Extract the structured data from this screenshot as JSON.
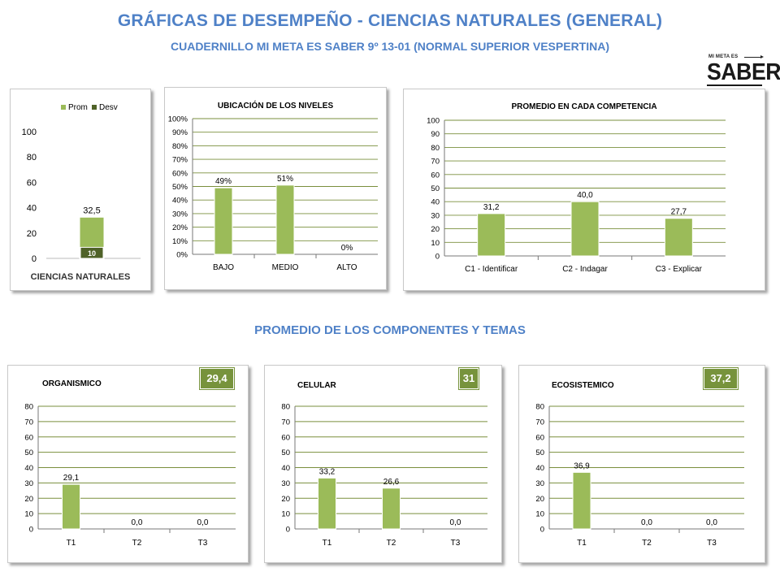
{
  "header": {
    "title": "GRÁFICAS DE DESEMPEÑO - CIENCIAS NATURALES (GENERAL)",
    "subtitle": "CUADERNILLO MI META ES SABER 9º 13-01 (NORMAL SUPERIOR VESPERTINA)",
    "section_title": "PROMEDIO DE LOS COMPONENTES Y TEMAS"
  },
  "logo": {
    "top_text": "MI META ES",
    "main_text": "SABER"
  },
  "colors": {
    "bar": "#9bbb59",
    "bar_dark": "#4f6228",
    "badge": "#77933c",
    "title": "#4f81c7"
  },
  "chart_data": [
    {
      "id": "general",
      "type": "bar",
      "categories": [
        "CIENCIAS NATURALES"
      ],
      "series": [
        {
          "name": "Prom",
          "values": [
            32.5
          ],
          "labels": [
            "32,5"
          ]
        },
        {
          "name": "Desv",
          "values": [
            10
          ],
          "labels": [
            "10"
          ]
        }
      ],
      "legend_position": "top",
      "ylim": [
        0,
        100
      ],
      "yticks": [
        0,
        20,
        40,
        60,
        80,
        100
      ],
      "ytick_labels": [
        "0",
        "20",
        "40",
        "60",
        "80",
        "100"
      ],
      "grid": false
    },
    {
      "id": "niveles",
      "type": "bar",
      "title": "UBICACIÓN DE LOS NIVELES",
      "categories": [
        "BAJO",
        "MEDIO",
        "ALTO"
      ],
      "values": [
        49,
        51,
        0
      ],
      "labels": [
        "49%",
        "51%",
        "0%"
      ],
      "ylim": [
        0,
        100
      ],
      "yticks": [
        0,
        10,
        20,
        30,
        40,
        50,
        60,
        70,
        80,
        90,
        100
      ],
      "ytick_labels": [
        "0%",
        "10%",
        "20%",
        "30%",
        "40%",
        "50%",
        "60%",
        "70%",
        "80%",
        "90%",
        "100%"
      ],
      "grid": true
    },
    {
      "id": "competencia",
      "type": "bar",
      "title": "PROMEDIO EN CADA COMPETENCIA",
      "categories": [
        "C1 - Identificar",
        "C2 - Indagar",
        "C3 - Explicar"
      ],
      "values": [
        31.2,
        40.0,
        27.7
      ],
      "labels": [
        "31,2",
        "40,0",
        "27,7"
      ],
      "ylim": [
        0,
        100
      ],
      "yticks": [
        0,
        10,
        20,
        30,
        40,
        50,
        60,
        70,
        80,
        90,
        100
      ],
      "ytick_labels": [
        "0",
        "10",
        "20",
        "30",
        "40",
        "50",
        "60",
        "70",
        "80",
        "90",
        "100"
      ],
      "grid": true
    },
    {
      "id": "organismico",
      "type": "bar",
      "title": "ORGANISMICO",
      "badge": "29,4",
      "categories": [
        "T1",
        "T2",
        "T3"
      ],
      "values": [
        29.1,
        0.0,
        0.0
      ],
      "labels": [
        "29,1",
        "0,0",
        "0,0"
      ],
      "ylim": [
        0,
        80
      ],
      "yticks": [
        0,
        10,
        20,
        30,
        40,
        50,
        60,
        70,
        80
      ],
      "ytick_labels": [
        "0",
        "10",
        "20",
        "30",
        "40",
        "50",
        "60",
        "70",
        "80"
      ],
      "grid": true
    },
    {
      "id": "celular",
      "type": "bar",
      "title": "CELULAR",
      "badge": "31",
      "categories": [
        "T1",
        "T2",
        "T3"
      ],
      "values": [
        33.2,
        26.6,
        0.0
      ],
      "labels": [
        "33,2",
        "26,6",
        "0,0"
      ],
      "ylim": [
        0,
        80
      ],
      "yticks": [
        0,
        10,
        20,
        30,
        40,
        50,
        60,
        70,
        80
      ],
      "ytick_labels": [
        "0",
        "10",
        "20",
        "30",
        "40",
        "50",
        "60",
        "70",
        "80"
      ],
      "grid": true
    },
    {
      "id": "ecosistemico",
      "type": "bar",
      "title": "ECOSISTEMICO",
      "badge": "37,2",
      "categories": [
        "T1",
        "T2",
        "T3"
      ],
      "values": [
        36.9,
        0.0,
        0.0
      ],
      "labels": [
        "36,9",
        "0,0",
        "0,0"
      ],
      "ylim": [
        0,
        80
      ],
      "yticks": [
        0,
        10,
        20,
        30,
        40,
        50,
        60,
        70,
        80
      ],
      "ytick_labels": [
        "0",
        "10",
        "20",
        "30",
        "40",
        "50",
        "60",
        "70",
        "80"
      ],
      "grid": true
    }
  ]
}
